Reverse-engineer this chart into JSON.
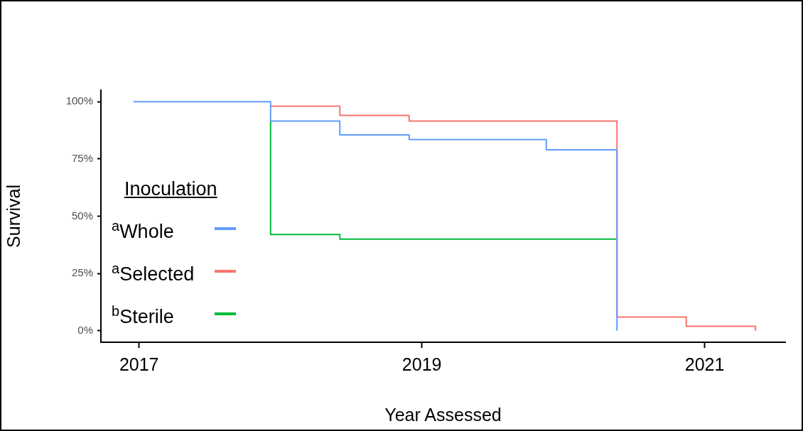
{
  "chart_data": {
    "type": "step",
    "xlabel": "Year Assessed",
    "ylabel": "Survival",
    "legend_title": "Inoculation",
    "series": [
      {
        "name": "$^{a}$Whole",
        "color": "#619cff",
        "x": [
          2016.96,
          2017.93,
          2018.42,
          2018.91,
          2019.88,
          2020.38
        ],
        "values": [
          100,
          91.5,
          85.5,
          83.5,
          79,
          0
        ]
      },
      {
        "name": "$^{a}$Selected",
        "color": "#f8766d",
        "x": [
          2017.93,
          2018.42,
          2018.91,
          2020.38,
          2020.87,
          2021.36
        ],
        "values": [
          98,
          94,
          91.5,
          6,
          2,
          0
        ]
      },
      {
        "name": "$^{b}$Sterile",
        "color": "#00ba38",
        "x": [
          2017.93,
          2017.93,
          2018.42,
          2020.38
        ],
        "values": [
          91.5,
          42,
          40,
          40
        ]
      }
    ],
    "xlim": [
      2016.73,
      2021.57
    ],
    "xticks": [
      2017,
      2019,
      2021
    ],
    "ylim": [
      -5,
      105
    ],
    "yticks": [
      {
        "value": 0,
        "label": "0%"
      },
      {
        "value": 25,
        "label": "25%"
      },
      {
        "value": 50,
        "label": "50%"
      },
      {
        "value": 75,
        "label": "75%"
      },
      {
        "value": 100,
        "label": "100%"
      }
    ],
    "grid": false,
    "legend": "bottom left",
    "marker": "none",
    "line_style": "solid"
  }
}
